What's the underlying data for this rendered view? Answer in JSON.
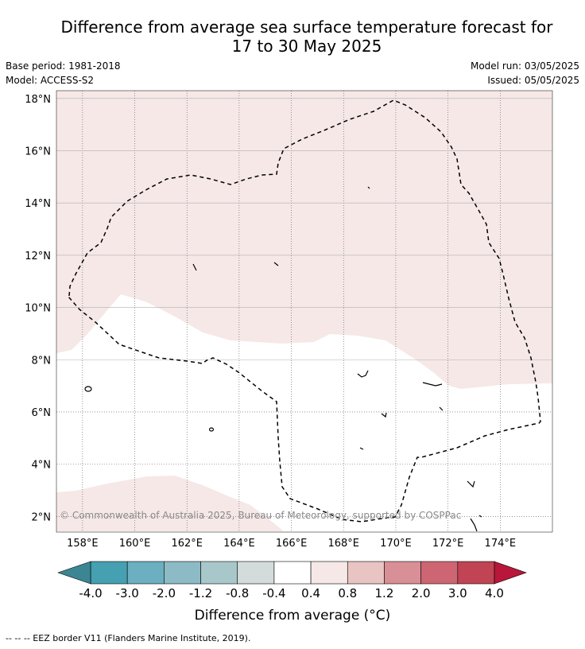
{
  "title_line1": "Difference from average sea surface temperature forecast for",
  "title_line2": "17 to 30 May 2025",
  "meta": {
    "base_period": "Base period: 1981-2018",
    "model": "Model: ACCESS-S2",
    "model_run": "Model run: 03/05/2025",
    "issued": "Issued: 05/05/2025"
  },
  "map": {
    "lon_range": [
      157,
      176
    ],
    "lat_range": [
      1.4,
      18.3
    ],
    "lon_ticks": [
      "158°E",
      "160°E",
      "162°E",
      "164°E",
      "166°E",
      "168°E",
      "170°E",
      "172°E",
      "174°E"
    ],
    "lat_ticks": [
      "2°N",
      "4°N",
      "6°N",
      "8°N",
      "10°N",
      "12°N",
      "14°N",
      "16°N",
      "18°N"
    ],
    "copyright": "© Commonwealth of Australia 2025, Bureau of Meteorology, supported by COSPPac",
    "anomaly_fill_color": "#f5e8e7",
    "neutral_color": "#ffffff"
  },
  "colorbar": {
    "title": "Difference from average (°C)",
    "ticks": [
      "-4.0",
      "-3.0",
      "-2.0",
      "-1.2",
      "-0.8",
      "-0.4",
      "0.4",
      "0.8",
      "1.2",
      "2.0",
      "3.0",
      "4.0"
    ],
    "colors": [
      "#45a0b1",
      "#6bafc0",
      "#8cbbc6",
      "#a8c7cb",
      "#d4dbdb",
      "#ffffff",
      "#f5e8e7",
      "#e8c4c2",
      "#d98f96",
      "#cd6672",
      "#c04454"
    ],
    "low_extend_color": "#3b8692",
    "high_extend_color": "#b8163a"
  },
  "footnote": "-- -- -- EEZ border V11 (Flanders Marine Institute, 2019)."
}
